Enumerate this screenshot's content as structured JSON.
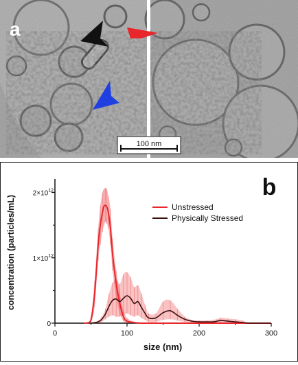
{
  "panel_a": {
    "label": "a",
    "scale_bar_label": "100 nm",
    "arrow_colors": {
      "black": "#111111",
      "red": "#e8262b",
      "blue": "#1f3fe0"
    }
  },
  "panel_b": {
    "label": "b",
    "chart_data": {
      "type": "line",
      "title": "",
      "xlabel": "size (nm)",
      "ylabel": "concentration (particles/mL)",
      "xlim": [
        0,
        300
      ],
      "ylim": [
        0,
        2100000000000.0
      ],
      "x_ticks": [
        0,
        100,
        200,
        300
      ],
      "y_ticks": [
        0,
        1000000000000.0,
        2000000000000.0
      ],
      "x_tick_labels": [
        "0",
        "100",
        "200",
        "300"
      ],
      "y_tick_labels": [
        {
          "base": "0",
          "exp": ""
        },
        {
          "base": "1×10",
          "exp": "12"
        },
        {
          "base": "2×10",
          "exp": "12"
        }
      ],
      "legend_position": "top-right",
      "series": [
        {
          "name": "Unstressed",
          "color": "#e8262b",
          "x": [
            40,
            45,
            50,
            55,
            60,
            63,
            66,
            68,
            70,
            72,
            74,
            77,
            80,
            85,
            90,
            95,
            100,
            110,
            120,
            140,
            160,
            180,
            200,
            230,
            260,
            300
          ],
          "y": [
            0,
            3000000000.0,
            50000000000.0,
            450000000000.0,
            1200000000000.0,
            1500000000000.0,
            1700000000000.0,
            1790000000000.0,
            1800000000000.0,
            1780000000000.0,
            1700000000000.0,
            1450000000000.0,
            1050000000000.0,
            600000000000.0,
            300000000000.0,
            100000000000.0,
            30000000000.0,
            10000000000.0,
            0,
            0,
            0,
            0,
            0,
            0,
            0,
            0
          ],
          "upper": [
            40,
            45,
            50,
            55,
            60,
            63,
            66,
            68,
            70,
            72,
            74,
            77,
            80,
            85,
            90,
            95,
            100,
            110,
            120,
            140,
            160,
            180,
            200,
            230,
            260,
            300
          ],
          "upper_y": [
            0,
            10000000000.0,
            100000000000.0,
            650000000000.0,
            1450000000000.0,
            1800000000000.0,
            2000000000000.0,
            2050000000000.0,
            2070000000000.0,
            2050000000000.0,
            1950000000000.0,
            1750000000000.0,
            1300000000000.0,
            800000000000.0,
            450000000000.0,
            200000000000.0,
            80000000000.0,
            20000000000.0,
            0,
            0,
            0,
            0,
            0,
            0,
            0,
            0
          ],
          "lower_y": [
            0,
            0,
            10000000000.0,
            250000000000.0,
            950000000000.0,
            1200000000000.0,
            1400000000000.0,
            1500000000000.0,
            1550000000000.0,
            1520000000000.0,
            1450000000000.0,
            1200000000000.0,
            800000000000.0,
            400000000000.0,
            150000000000.0,
            30000000000.0,
            0,
            0,
            0,
            0,
            0,
            0,
            0,
            0,
            0,
            0
          ]
        },
        {
          "name": "Physically Stressed",
          "color": "#3a0d0d",
          "x": [
            50,
            60,
            65,
            70,
            75,
            80,
            85,
            90,
            95,
            100,
            105,
            110,
            115,
            120,
            125,
            130,
            140,
            150,
            160,
            170,
            180,
            190,
            200,
            210,
            220,
            230,
            240,
            250,
            260,
            270,
            300
          ],
          "y": [
            0,
            20000000000.0,
            60000000000.0,
            140000000000.0,
            260000000000.0,
            350000000000.0,
            370000000000.0,
            330000000000.0,
            380000000000.0,
            420000000000.0,
            380000000000.0,
            300000000000.0,
            330000000000.0,
            240000000000.0,
            150000000000.0,
            80000000000.0,
            80000000000.0,
            160000000000.0,
            190000000000.0,
            120000000000.0,
            60000000000.0,
            30000000000.0,
            20000000000.0,
            20000000000.0,
            20000000000.0,
            40000000000.0,
            30000000000.0,
            20000000000.0,
            10000000000.0,
            0,
            0
          ],
          "upper_y": [
            0,
            40000000000.0,
            100000000000.0,
            220000000000.0,
            450000000000.0,
            620000000000.0,
            680000000000.0,
            600000000000.0,
            750000000000.0,
            780000000000.0,
            700000000000.0,
            550000000000.0,
            580000000000.0,
            450000000000.0,
            280000000000.0,
            150000000000.0,
            150000000000.0,
            330000000000.0,
            350000000000.0,
            220000000000.0,
            100000000000.0,
            50000000000.0,
            40000000000.0,
            40000000000.0,
            50000000000.0,
            80000000000.0,
            70000000000.0,
            60000000000.0,
            40000000000.0,
            10000000000.0,
            0
          ],
          "lower_y": [
            0,
            0,
            20000000000.0,
            60000000000.0,
            100000000000.0,
            120000000000.0,
            100000000000.0,
            100000000000.0,
            120000000000.0,
            150000000000.0,
            120000000000.0,
            100000000000.0,
            120000000000.0,
            80000000000.0,
            50000000000.0,
            20000000000.0,
            20000000000.0,
            50000000000.0,
            60000000000.0,
            40000000000.0,
            20000000000.0,
            10000000000.0,
            0,
            0,
            0,
            10000000000.0,
            10000000000.0,
            0,
            0,
            0,
            0
          ]
        }
      ]
    }
  }
}
